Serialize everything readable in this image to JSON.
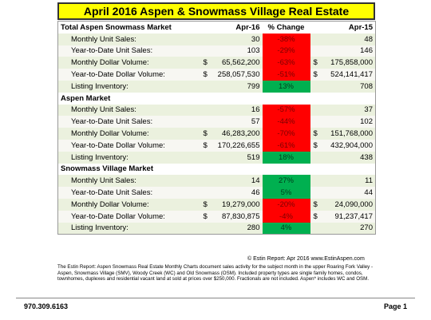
{
  "header": {
    "title": "April 2016 Aspen & Snowmass Village Real Estate"
  },
  "table": {
    "columns": [
      "Apr-16",
      "% Change",
      "Apr-15"
    ],
    "sections": [
      {
        "title": "Total Aspen Snowmass Market",
        "rows": [
          {
            "label": "Monthly Unit Sales:",
            "apr16": "30",
            "change": "-38%",
            "apr15": "48"
          },
          {
            "label": "Year-to-Date Unit Sales:",
            "apr16": "103",
            "change": "-29%",
            "apr15": "146"
          },
          {
            "label": "Monthly Dollar Volume:",
            "currency": "$",
            "apr16": "65,562,200",
            "change": "-63%",
            "apr15": "175,858,000"
          },
          {
            "label": "Year-to-Date Dollar Volume:",
            "currency": "$",
            "apr16": "258,057,530",
            "change": "-51%",
            "apr15": "524,141,417"
          },
          {
            "label": "Listing Inventory:",
            "apr16": "799",
            "change": "13%",
            "apr15": "708"
          }
        ]
      },
      {
        "title": "Aspen Market",
        "rows": [
          {
            "label": "Monthly Unit Sales:",
            "apr16": "16",
            "change": "-57%",
            "apr15": "37"
          },
          {
            "label": "Year-to-Date Unit Sales:",
            "apr16": "57",
            "change": "-44%",
            "apr15": "102"
          },
          {
            "label": "Monthly Dollar Volume:",
            "currency": "$",
            "apr16": "46,283,200",
            "change": "-70%",
            "apr15": "151,768,000"
          },
          {
            "label": "Year-to-Date Dollar Volume:",
            "currency": "$",
            "apr16": "170,226,655",
            "change": "-61%",
            "apr15": "432,904,000"
          },
          {
            "label": "Listing Inventory:",
            "apr16": "519",
            "change": "18%",
            "apr15": "438"
          }
        ]
      },
      {
        "title": "Snowmass Village Market",
        "rows": [
          {
            "label": "Monthly Unit Sales:",
            "apr16": "14",
            "change": "27%",
            "apr15": "11"
          },
          {
            "label": "Year-to-Date Unit Sales:",
            "apr16": "46",
            "change": "5%",
            "apr15": "44"
          },
          {
            "label": "Monthly Dollar Volume:",
            "currency": "$",
            "apr16": "19,279,000",
            "change": "-20%",
            "apr15": "24,090,000"
          },
          {
            "label": "Year-to-Date Dollar Volume:",
            "currency": "$",
            "apr16": "87,830,875",
            "change": "-4%",
            "apr15": "91,237,417"
          },
          {
            "label": "Listing Inventory:",
            "apr16": "280",
            "change": "4%",
            "apr15": "270"
          }
        ]
      }
    ]
  },
  "footer": {
    "copyright": "© Estin Report: Apr 2016 www.EstinAspen.com",
    "note": "The Estin Report: Aspen Snowmass Real Estate Monthly Charts document sales activity for the subject month in the upper Roaring Fork Valley - Aspen, Snowmass Village (SMV), Woody Creek (WC) and Old Snowmass (OSM). Included property types are single family homes, condos, townhomes, duplexes and residential vacant land at sold at prices over $250,000. Fractionals are not included. Aspen* includes WC and OSM.",
    "phone": "970.309.6163",
    "page": "Page 1"
  }
}
